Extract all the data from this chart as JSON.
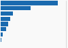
{
  "values": [
    261,
    136,
    56,
    44,
    35,
    24,
    10,
    3,
    1
  ],
  "bar_color": "#1a6aaf",
  "background_color": "#f9f9f9",
  "bar_height": 0.82,
  "xlim": [
    0,
    300
  ],
  "right_border_color": "#cccccc"
}
